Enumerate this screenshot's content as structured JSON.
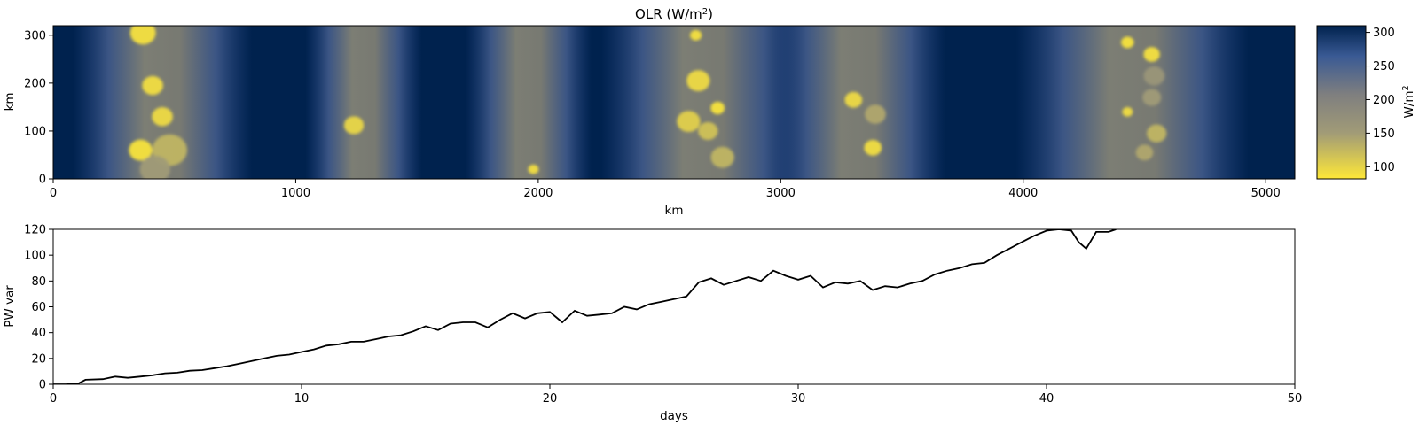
{
  "chart_data": [
    {
      "type": "heatmap",
      "title": "OLR (W/m",
      "title_sup": "2",
      "title_end": ")",
      "xlabel": "km",
      "ylabel": "km",
      "xlim": [
        0,
        5120
      ],
      "ylim": [
        0,
        320
      ],
      "xticks": [
        0,
        1000,
        2000,
        3000,
        4000,
        5000
      ],
      "yticks": [
        0,
        100,
        200,
        300
      ],
      "colorbar": {
        "label": "W/m",
        "label_sup": "2",
        "range": [
          82,
          310
        ],
        "ticks": [
          100,
          150,
          200,
          250,
          300
        ],
        "colormap": [
          "#fee838",
          "#a19b77",
          "#7f7f7f",
          "#3a5a94",
          "#00224e"
        ]
      },
      "convective_bands_km": [
        {
          "center": 450,
          "width": 370
        },
        {
          "center": 1280,
          "width": 240
        },
        {
          "center": 1960,
          "width": 260
        },
        {
          "center": 2680,
          "width": 420
        },
        {
          "center": 3320,
          "width": 360
        },
        {
          "center": 4450,
          "width": 480
        }
      ],
      "cells": [
        {
          "x": 370,
          "y": 305,
          "r": 22,
          "v": 88
        },
        {
          "x": 410,
          "y": 195,
          "r": 18,
          "v": 90
        },
        {
          "x": 450,
          "y": 130,
          "r": 18,
          "v": 92
        },
        {
          "x": 360,
          "y": 60,
          "r": 20,
          "v": 86
        },
        {
          "x": 480,
          "y": 60,
          "r": 30,
          "v": 120
        },
        {
          "x": 420,
          "y": 20,
          "r": 26,
          "v": 140
        },
        {
          "x": 1240,
          "y": 112,
          "r": 17,
          "v": 95
        },
        {
          "x": 1980,
          "y": 20,
          "r": 9,
          "v": 90
        },
        {
          "x": 2650,
          "y": 300,
          "r": 10,
          "v": 88
        },
        {
          "x": 2660,
          "y": 205,
          "r": 20,
          "v": 92
        },
        {
          "x": 2620,
          "y": 120,
          "r": 20,
          "v": 100
        },
        {
          "x": 2740,
          "y": 148,
          "r": 12,
          "v": 86
        },
        {
          "x": 2700,
          "y": 100,
          "r": 17,
          "v": 110
        },
        {
          "x": 2760,
          "y": 45,
          "r": 20,
          "v": 120
        },
        {
          "x": 3300,
          "y": 165,
          "r": 15,
          "v": 92
        },
        {
          "x": 3390,
          "y": 135,
          "r": 18,
          "v": 130
        },
        {
          "x": 3380,
          "y": 65,
          "r": 15,
          "v": 90
        },
        {
          "x": 4430,
          "y": 285,
          "r": 11,
          "v": 86
        },
        {
          "x": 4530,
          "y": 260,
          "r": 14,
          "v": 88
        },
        {
          "x": 4540,
          "y": 215,
          "r": 18,
          "v": 150
        },
        {
          "x": 4430,
          "y": 140,
          "r": 9,
          "v": 90
        },
        {
          "x": 4530,
          "y": 170,
          "r": 16,
          "v": 140
        },
        {
          "x": 4550,
          "y": 95,
          "r": 17,
          "v": 120
        },
        {
          "x": 4500,
          "y": 55,
          "r": 15,
          "v": 130
        }
      ]
    },
    {
      "type": "line",
      "xlabel": "days",
      "ylabel": "PW var",
      "xlim": [
        0,
        50
      ],
      "ylim": [
        0,
        120
      ],
      "xticks": [
        0,
        10,
        20,
        30,
        40,
        50
      ],
      "yticks": [
        0,
        20,
        40,
        60,
        80,
        100,
        120
      ],
      "color": "#000000",
      "series": [
        {
          "x": [
            0,
            0.5,
            1.0,
            1.3,
            2.0,
            2.5,
            3.0,
            3.5,
            4.0,
            4.5,
            5.0,
            5.5,
            6.0,
            6.5,
            7.0,
            7.5,
            8.0,
            8.5,
            9.0,
            9.5,
            10.0,
            10.5,
            11.0,
            11.5,
            12.0,
            12.5,
            13.0,
            13.5,
            14.0,
            14.5,
            15.0,
            15.5,
            16.0,
            16.5,
            17.0,
            17.5,
            18.0,
            18.5,
            19.0,
            19.5,
            20.0,
            20.5,
            21.0,
            21.5,
            22.0,
            22.5,
            23.0,
            23.5,
            24.0,
            24.5,
            25.0,
            25.5,
            26.0,
            26.5,
            27.0,
            27.5,
            28.0,
            28.5,
            29.0,
            29.5,
            30.0,
            30.5,
            31.0,
            31.5,
            32.0,
            32.5,
            33.0,
            33.5,
            34.0,
            34.5,
            35.0,
            35.5,
            36.0,
            36.5,
            37.0,
            37.5,
            38.0,
            38.5,
            39.0,
            39.5,
            40.0,
            40.5,
            41.0,
            41.3,
            41.6,
            42.0,
            42.5,
            42.8
          ],
          "y": [
            0,
            0,
            0.5,
            3.5,
            4,
            6,
            5,
            6,
            7,
            8.5,
            9,
            10.5,
            11,
            12.5,
            14,
            16,
            18,
            20,
            22,
            23,
            25,
            27,
            30,
            31,
            33,
            33,
            35,
            37,
            38,
            41,
            45,
            42,
            47,
            48,
            48,
            44,
            50,
            55,
            51,
            55,
            56,
            48,
            57,
            53,
            54,
            55,
            60,
            58,
            62,
            64,
            66,
            68,
            79,
            82,
            77,
            80,
            83,
            80,
            88,
            84,
            81,
            84,
            75,
            79,
            78,
            80,
            73,
            76,
            75,
            78,
            80,
            85,
            88,
            90,
            93,
            94,
            100,
            105,
            110,
            115,
            119,
            120,
            119,
            110,
            105,
            118,
            118,
            120
          ]
        }
      ]
    }
  ]
}
